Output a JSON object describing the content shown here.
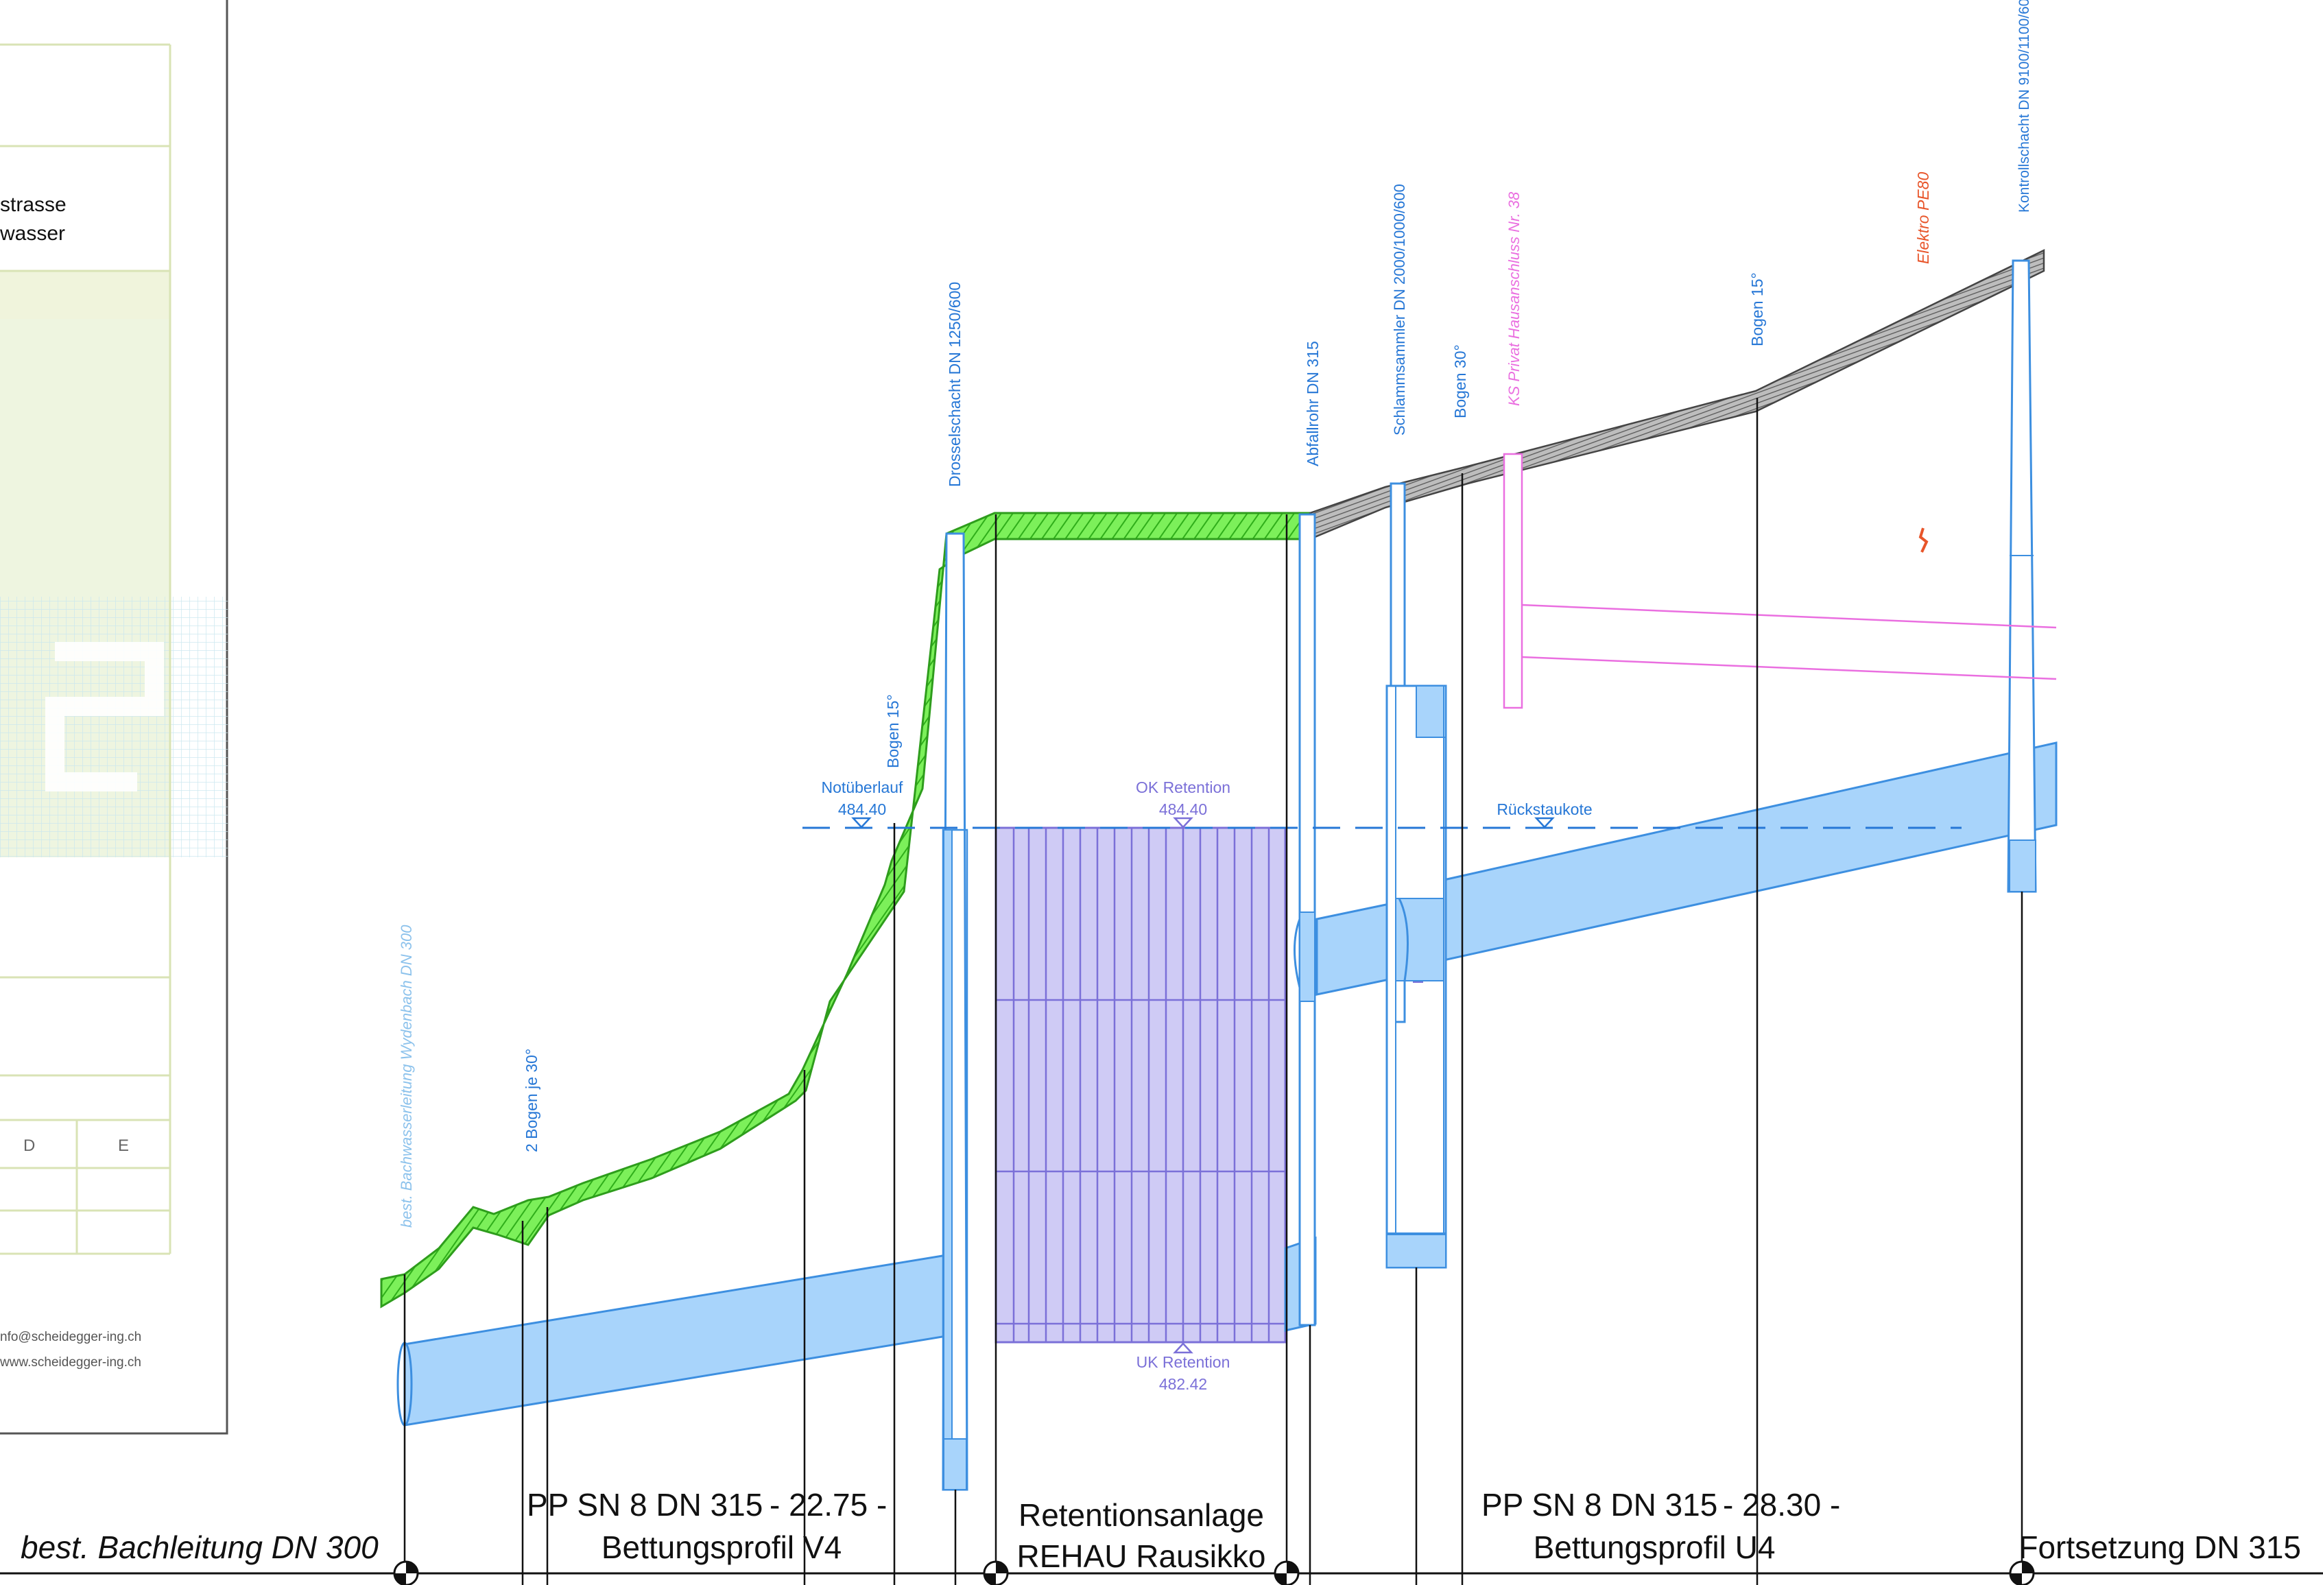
{
  "title_block": {
    "line1": "strasse",
    "line2": "wasser",
    "col_d": "D",
    "col_e": "E",
    "email": "nfo@scheidegger-ing.ch",
    "web": "www.scheidegger-ing.ch"
  },
  "vertical_labels": {
    "best_bach": "best. Bachwasserleitung Wydenbach DN 300",
    "two_bogen": "2 Bogen je 30°",
    "bogen15_left": "Bogen 15°",
    "drosselschacht": "Drosselschacht DN 1250/600",
    "abfallrohr": "Abfallrohr DN 315",
    "schlammsammler": "Schlammsammler DN 2000/1000/600",
    "bogen30": "Bogen 30°",
    "ks_privat": "KS Privat Hausanschluss Nr. 38",
    "bogen15_right": "Bogen 15°",
    "elektro": "Elektro PE80",
    "kontrollschacht": "Kontrollschacht DN 9100/1100/60"
  },
  "levels": {
    "notueberlauf_label": "Notüberlauf",
    "notueberlauf_value": "484.40",
    "ok_label": "OK Retention",
    "ok_value": "484.40",
    "uk_label": "UK Retention",
    "uk_value": "482.42",
    "rueckstau_label": "Rückstaukote"
  },
  "sections": {
    "left_label": "best. Bachleitung DN 300",
    "seg1_pipe": "PP SN 8  DN 315",
    "seg1_len": "- 22.75 -",
    "seg1_bed": "Bettungsprofil V4",
    "ret_line1": "Retentionsanlage",
    "ret_line2": "REHAU Rausikko",
    "seg2_pipe": "PP SN 8  DN 315",
    "seg2_len": "- 28.30 -",
    "seg2_bed": "Bettungsprofil U4",
    "right_label": "Fortsetzung DN 315"
  },
  "colors": {
    "pipe_fill": "#a8d4fb",
    "pipe_stroke": "#3d8fe0",
    "retention_fill": "#cfcbf5",
    "retention_stroke": "#7b70d8",
    "grass": "#57e035",
    "road": "#8a8a8a",
    "label_blue": "#2677d6",
    "pink": "#ea6fe0",
    "orange": "#e8552a"
  }
}
